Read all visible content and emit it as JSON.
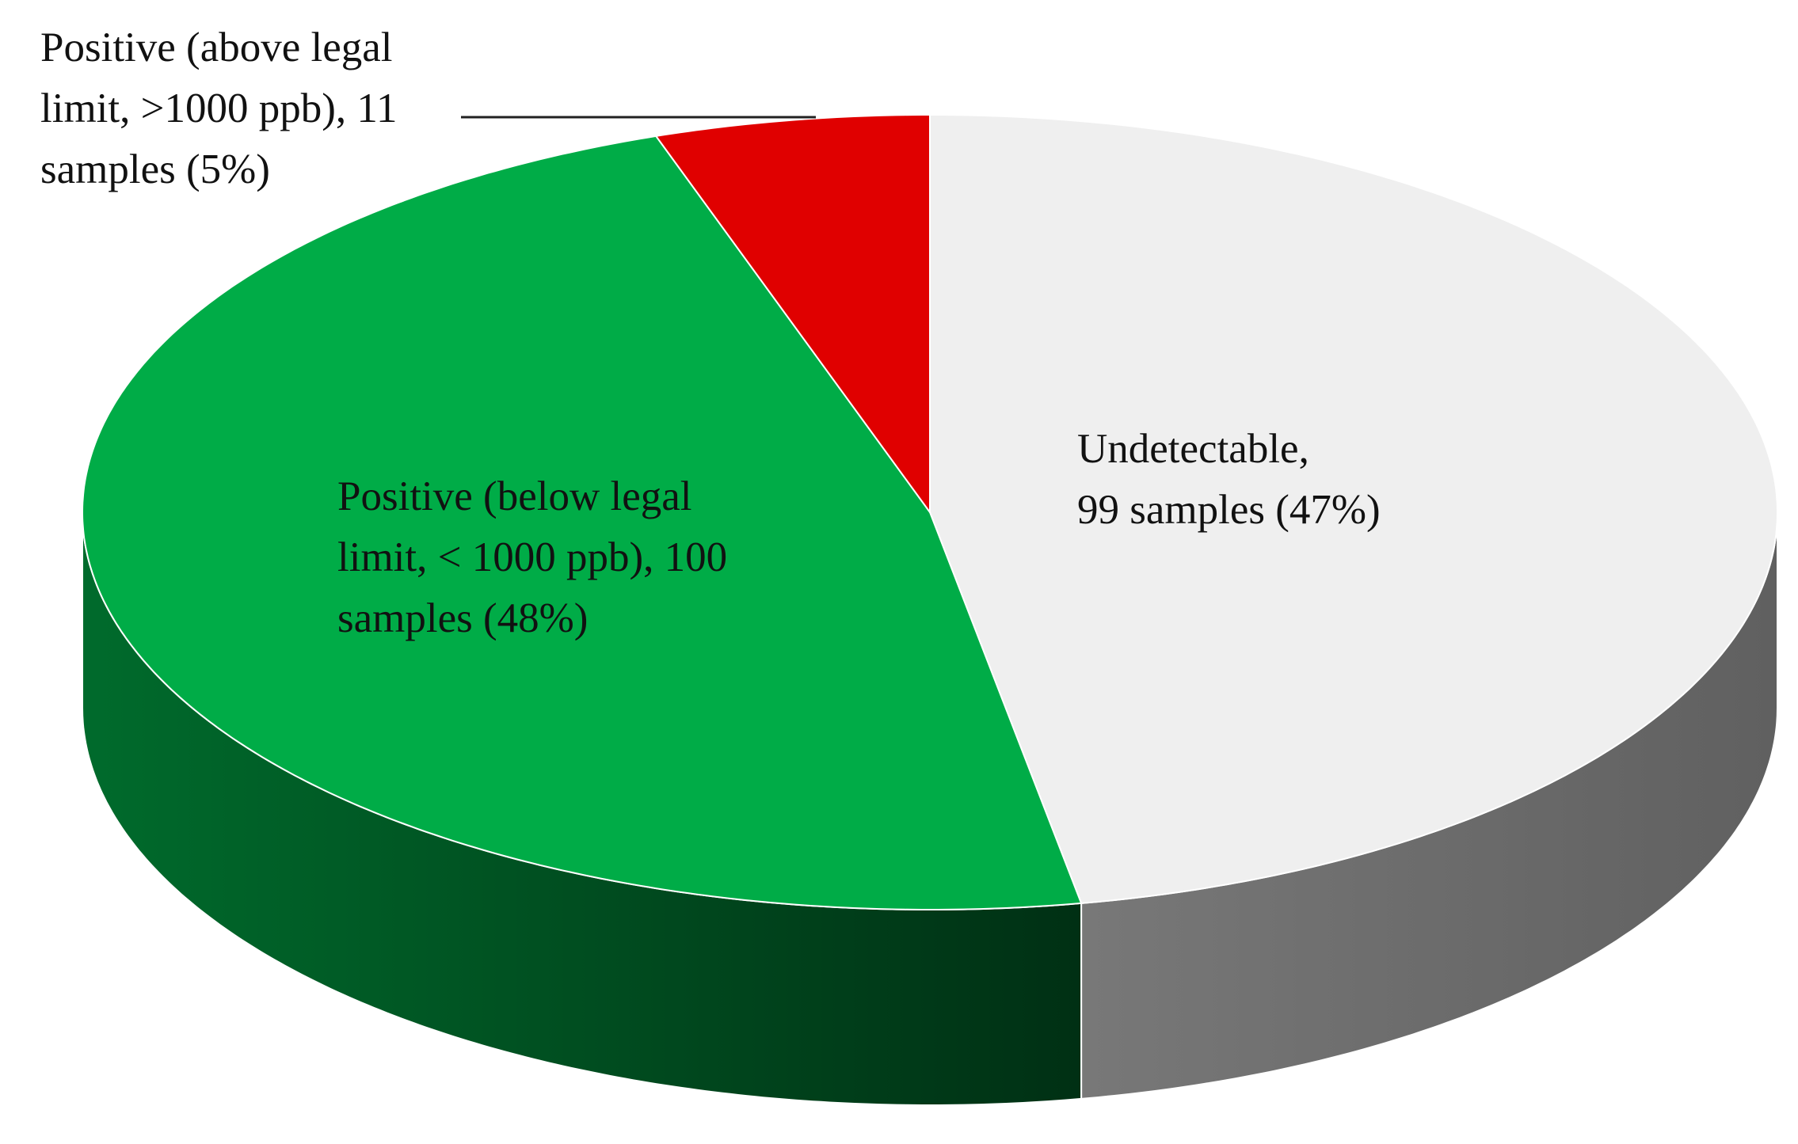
{
  "chart_data": {
    "type": "pie",
    "three_d": true,
    "values": [
      99,
      100,
      11
    ],
    "value_labels": [
      [
        "Undetectable,",
        "99 samples (47%)"
      ],
      [
        "Positive (below legal",
        "limit, < 1000 ppb), 100",
        "samples (48%)"
      ],
      [
        "Positive (above legal",
        "limit, >1000 ppb), 11",
        "samples (5%)"
      ]
    ],
    "colors": [
      "#efefef",
      "#00ac47",
      "#e00000"
    ]
  }
}
